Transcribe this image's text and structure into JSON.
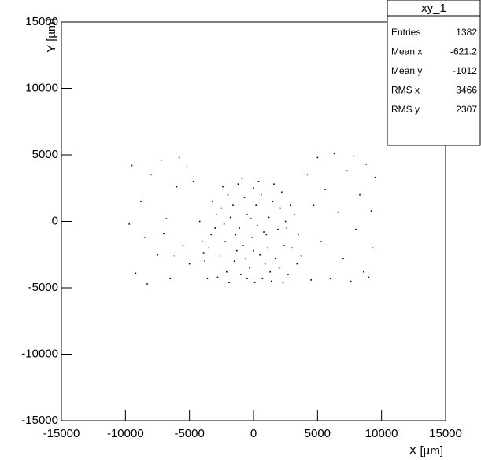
{
  "chart_data": {
    "type": "scatter",
    "x_label": "X [µm]",
    "y_label": "Y [µm]",
    "xlim": [
      -15000,
      15000
    ],
    "ylim": [
      -15000,
      15000
    ],
    "xticks": [
      -15000,
      -10000,
      -5000,
      0,
      5000,
      10000,
      15000
    ],
    "yticks": [
      -15000,
      -10000,
      -5000,
      0,
      5000,
      10000,
      15000
    ],
    "color": "#000000",
    "stats": {
      "title": "xy_1",
      "rows": [
        {
          "label": "Entries",
          "value": 1382
        },
        {
          "label": "Mean x",
          "value": -621.2
        },
        {
          "label": "Mean y",
          "value": -1012
        },
        {
          "label": "RMS x",
          "value": 3466
        },
        {
          "label": "RMS y",
          "value": 2307
        }
      ]
    },
    "x": [
      -3500,
      -3000,
      -2500,
      -2000,
      -1500,
      -1000,
      -500,
      0,
      500,
      1000,
      1500,
      2000,
      2500,
      3000,
      3500,
      -4000,
      -3800,
      -3200,
      -2800,
      -2200,
      -1800,
      -1200,
      -800,
      -300,
      200,
      700,
      1200,
      1700,
      2200,
      2700,
      3200,
      -4200,
      -3600,
      -2600,
      -2100,
      -1600,
      -1100,
      -600,
      -100,
      400,
      900,
      1400,
      1900,
      2400,
      2900,
      3400,
      -3300,
      -2400,
      -1300,
      -200,
      600,
      1100,
      2600,
      -1900,
      100,
      1600,
      -700,
      300,
      -3900,
      3700,
      -2900,
      2100,
      -500,
      800,
      -1400,
      1300,
      -2300,
      2300,
      -900,
      0,
      -9500,
      -9200,
      -8800,
      -8500,
      -8000,
      -7500,
      -7200,
      -6800,
      -6500,
      -6000,
      -5500,
      -5200,
      -5000,
      5000,
      5300,
      5600,
      6000,
      6300,
      6600,
      7000,
      7300,
      7800,
      8000,
      8300,
      8600,
      8800,
      9000,
      9200,
      9300,
      9500,
      -9700,
      -8300,
      -7000,
      4500,
      4700,
      -5800,
      -4700,
      4200,
      -6200,
      7600
    ],
    "y": [
      -2000,
      -500,
      1000,
      2000,
      -3000,
      -4000,
      500,
      2500,
      -2500,
      -1000,
      1500,
      -3500,
      0,
      -2000,
      -1000,
      -1500,
      -3000,
      1500,
      -4200,
      -1500,
      300,
      2800,
      -1800,
      -3500,
      1200,
      -4300,
      300,
      -2800,
      2200,
      -4000,
      500,
      0,
      -4300,
      -2600,
      -3800,
      1200,
      -500,
      -2800,
      -1200,
      3000,
      -3200,
      -4500,
      -600,
      -1800,
      1200,
      -3200,
      -1000,
      2600,
      -2200,
      200,
      2000,
      -2000,
      -500,
      -4600,
      -4600,
      2800,
      1800,
      -300,
      -2400,
      -2600,
      500,
      1000,
      -4300,
      -800,
      -1000,
      -3800,
      -200,
      -4600,
      3200,
      -2200,
      4200,
      -3900,
      1500,
      -1200,
      3500,
      -2500,
      4600,
      200,
      -4300,
      2600,
      -1800,
      4100,
      -3200,
      4800,
      -1500,
      2400,
      -4300,
      5100,
      700,
      -2800,
      3800,
      4900,
      -600,
      2000,
      -3800,
      4300,
      -4200,
      800,
      -2000,
      3300,
      -200,
      -4700,
      -900,
      -4400,
      1200,
      4800,
      3000,
      3500,
      -2600,
      -4500
    ]
  }
}
